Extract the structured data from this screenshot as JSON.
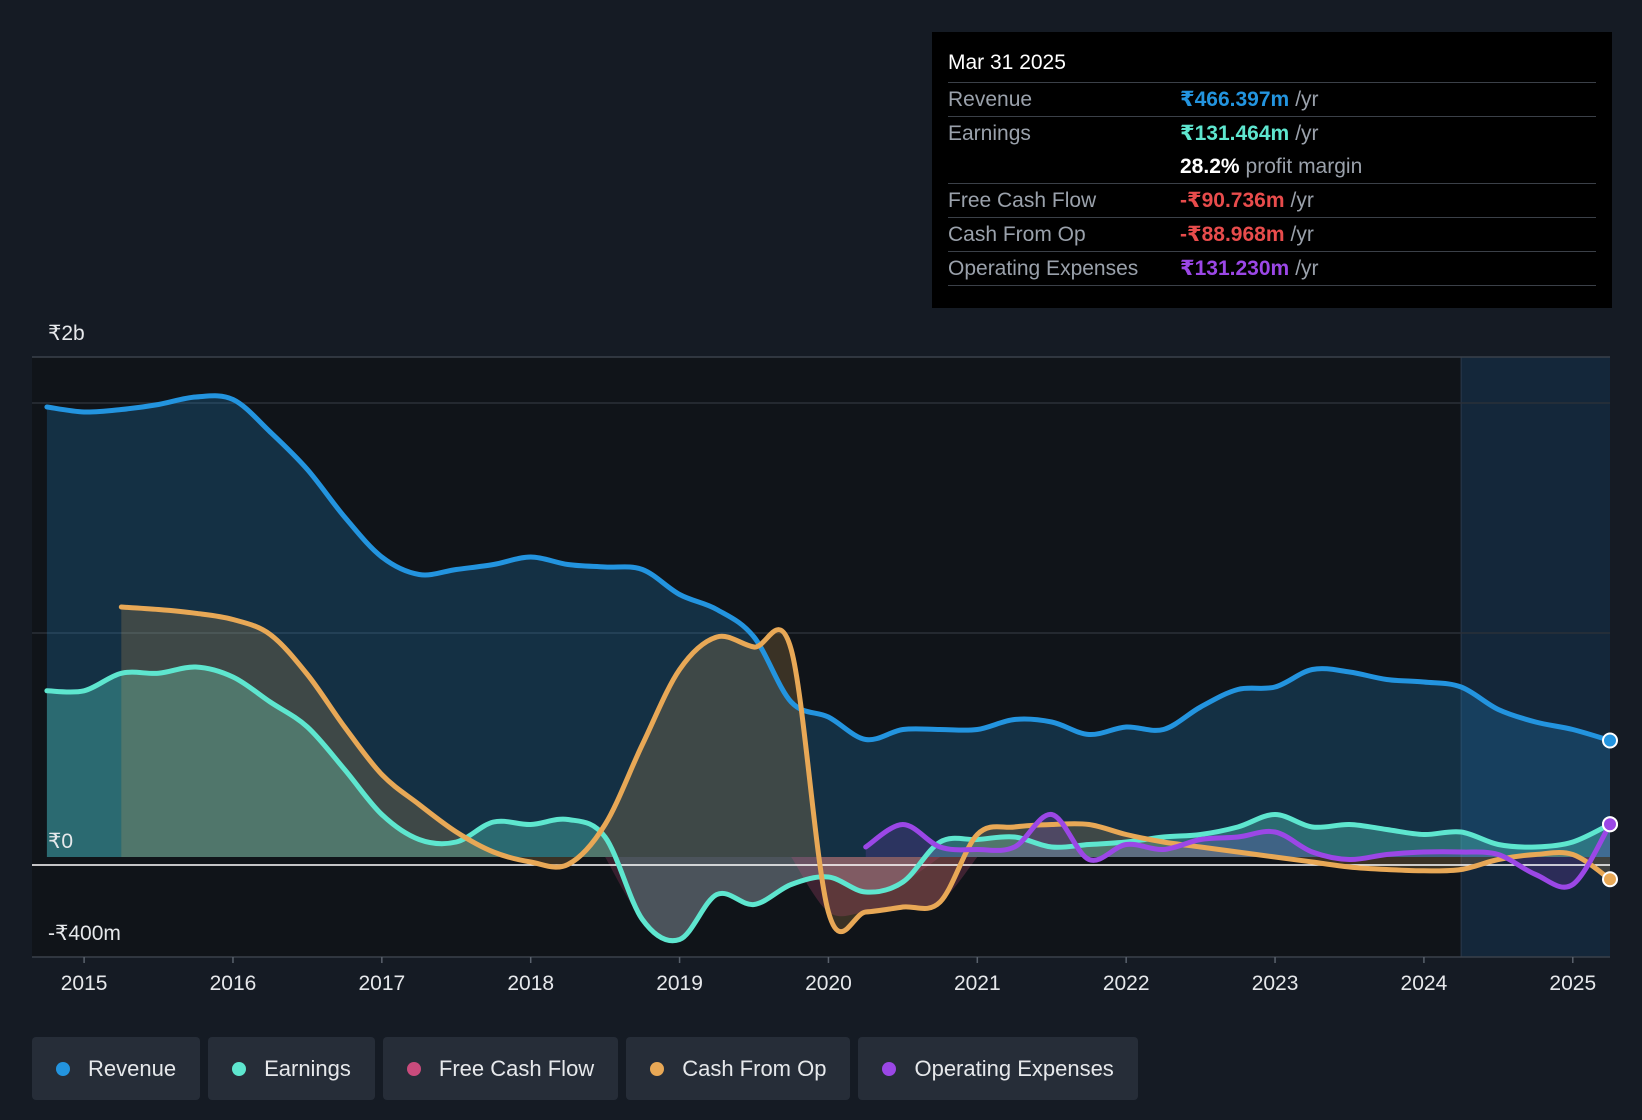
{
  "chart_data": {
    "type": "area",
    "y_axis": {
      "ylim": [
        -400,
        2000
      ],
      "unit": "₹m",
      "tick_labels": [
        {
          "value": 2000,
          "label": "₹2b"
        },
        {
          "value": 0,
          "label": "₹0"
        },
        {
          "value": -400,
          "label": "-₹400m"
        }
      ]
    },
    "x_axis": {
      "xlim": [
        2014.65,
        2025.25
      ],
      "ticks": [
        "2015",
        "2016",
        "2017",
        "2018",
        "2019",
        "2020",
        "2021",
        "2022",
        "2023",
        "2024",
        "2025"
      ]
    },
    "forecast_start": 2024.25,
    "series": [
      {
        "name": "Revenue",
        "color": "#2394df",
        "points": [
          [
            2014.75,
            1800
          ],
          [
            2015.0,
            1780
          ],
          [
            2015.25,
            1790
          ],
          [
            2015.5,
            1810
          ],
          [
            2015.75,
            1840
          ],
          [
            2016.0,
            1830
          ],
          [
            2016.25,
            1700
          ],
          [
            2016.5,
            1550
          ],
          [
            2016.75,
            1360
          ],
          [
            2017.0,
            1200
          ],
          [
            2017.25,
            1130
          ],
          [
            2017.5,
            1150
          ],
          [
            2017.75,
            1170
          ],
          [
            2018.0,
            1200
          ],
          [
            2018.25,
            1170
          ],
          [
            2018.5,
            1160
          ],
          [
            2018.75,
            1150
          ],
          [
            2019.0,
            1050
          ],
          [
            2019.25,
            990
          ],
          [
            2019.5,
            880
          ],
          [
            2019.75,
            620
          ],
          [
            2020.0,
            560
          ],
          [
            2020.25,
            470
          ],
          [
            2020.5,
            510
          ],
          [
            2020.75,
            510
          ],
          [
            2021.0,
            510
          ],
          [
            2021.25,
            550
          ],
          [
            2021.5,
            540
          ],
          [
            2021.75,
            490
          ],
          [
            2022.0,
            520
          ],
          [
            2022.25,
            510
          ],
          [
            2022.5,
            600
          ],
          [
            2022.75,
            670
          ],
          [
            2023.0,
            680
          ],
          [
            2023.25,
            750
          ],
          [
            2023.5,
            740
          ],
          [
            2023.75,
            710
          ],
          [
            2024.0,
            700
          ],
          [
            2024.25,
            680
          ],
          [
            2024.5,
            590
          ],
          [
            2024.75,
            540
          ],
          [
            2025.0,
            510
          ],
          [
            2025.25,
            466
          ]
        ]
      },
      {
        "name": "Earnings",
        "color": "#5ee6cf",
        "points": [
          [
            2014.75,
            665
          ],
          [
            2015.0,
            665
          ],
          [
            2015.25,
            735
          ],
          [
            2015.5,
            735
          ],
          [
            2015.75,
            760
          ],
          [
            2016.0,
            720
          ],
          [
            2016.25,
            620
          ],
          [
            2016.5,
            520
          ],
          [
            2016.75,
            350
          ],
          [
            2017.0,
            170
          ],
          [
            2017.25,
            70
          ],
          [
            2017.5,
            60
          ],
          [
            2017.75,
            140
          ],
          [
            2018.0,
            130
          ],
          [
            2018.25,
            150
          ],
          [
            2018.5,
            80
          ],
          [
            2018.75,
            -250
          ],
          [
            2019.0,
            -330
          ],
          [
            2019.25,
            -150
          ],
          [
            2019.5,
            -190
          ],
          [
            2019.75,
            -110
          ],
          [
            2020.0,
            -80
          ],
          [
            2020.25,
            -140
          ],
          [
            2020.5,
            -100
          ],
          [
            2020.75,
            60
          ],
          [
            2021.0,
            70
          ],
          [
            2021.25,
            80
          ],
          [
            2021.5,
            40
          ],
          [
            2021.75,
            50
          ],
          [
            2022.0,
            60
          ],
          [
            2022.25,
            80
          ],
          [
            2022.5,
            90
          ],
          [
            2022.75,
            120
          ],
          [
            2023.0,
            170
          ],
          [
            2023.25,
            120
          ],
          [
            2023.5,
            130
          ],
          [
            2023.75,
            110
          ],
          [
            2024.0,
            90
          ],
          [
            2024.25,
            100
          ],
          [
            2024.5,
            50
          ],
          [
            2024.75,
            40
          ],
          [
            2025.0,
            60
          ],
          [
            2025.25,
            131
          ]
        ]
      },
      {
        "name": "Free Cash Flow",
        "color": "#c94b7c",
        "points": []
      },
      {
        "name": "Cash From Op",
        "color": "#e8a856",
        "points": [
          [
            2015.25,
            1000
          ],
          [
            2015.5,
            990
          ],
          [
            2015.75,
            975
          ],
          [
            2016.0,
            950
          ],
          [
            2016.25,
            890
          ],
          [
            2016.5,
            730
          ],
          [
            2016.75,
            520
          ],
          [
            2017.0,
            330
          ],
          [
            2017.25,
            210
          ],
          [
            2017.5,
            100
          ],
          [
            2017.75,
            20
          ],
          [
            2018.0,
            -20
          ],
          [
            2018.25,
            -30
          ],
          [
            2018.5,
            130
          ],
          [
            2018.75,
            450
          ],
          [
            2019.0,
            750
          ],
          [
            2019.25,
            880
          ],
          [
            2019.5,
            840
          ],
          [
            2019.75,
            830
          ],
          [
            2020.0,
            -220
          ],
          [
            2020.25,
            -220
          ],
          [
            2020.5,
            -200
          ],
          [
            2020.75,
            -180
          ],
          [
            2021.0,
            90
          ],
          [
            2021.25,
            120
          ],
          [
            2021.5,
            130
          ],
          [
            2021.75,
            130
          ],
          [
            2022.0,
            90
          ],
          [
            2022.25,
            60
          ],
          [
            2022.5,
            40
          ],
          [
            2022.75,
            20
          ],
          [
            2023.0,
            0
          ],
          [
            2023.25,
            -20
          ],
          [
            2023.5,
            -40
          ],
          [
            2023.75,
            -50
          ],
          [
            2024.0,
            -55
          ],
          [
            2024.25,
            -50
          ],
          [
            2024.5,
            -10
          ],
          [
            2024.75,
            10
          ],
          [
            2025.0,
            10
          ],
          [
            2025.25,
            -89
          ]
        ]
      },
      {
        "name": "Operating Expenses",
        "color": "#9b47e6",
        "points": [
          [
            2020.25,
            40
          ],
          [
            2020.5,
            130
          ],
          [
            2020.75,
            40
          ],
          [
            2021.0,
            30
          ],
          [
            2021.25,
            40
          ],
          [
            2021.5,
            170
          ],
          [
            2021.75,
            -10
          ],
          [
            2022.0,
            50
          ],
          [
            2022.25,
            30
          ],
          [
            2022.5,
            70
          ],
          [
            2022.75,
            80
          ],
          [
            2023.0,
            100
          ],
          [
            2023.25,
            20
          ],
          [
            2023.5,
            -10
          ],
          [
            2023.75,
            10
          ],
          [
            2024.0,
            20
          ],
          [
            2024.25,
            20
          ],
          [
            2024.5,
            10
          ],
          [
            2024.75,
            -70
          ],
          [
            2025.0,
            -110
          ],
          [
            2025.25,
            131
          ]
        ]
      }
    ]
  },
  "tooltip": {
    "date": "Mar 31 2025",
    "rows": [
      {
        "label": "Revenue",
        "value": "₹466.397m",
        "unit": "/yr",
        "color": "#2394df"
      },
      {
        "label": "Earnings",
        "value": "₹131.464m",
        "unit": "/yr",
        "color": "#5ee6cf"
      },
      {
        "label": "Free Cash Flow",
        "value": "-₹90.736m",
        "unit": "/yr",
        "color": "#e84c4c"
      },
      {
        "label": "Cash From Op",
        "value": "-₹88.968m",
        "unit": "/yr",
        "color": "#e84c4c"
      },
      {
        "label": "Operating Expenses",
        "value": "₹131.230m",
        "unit": "/yr",
        "color": "#9b47e6"
      }
    ],
    "margin_value": "28.2%",
    "margin_label": "profit margin"
  },
  "legend": [
    {
      "label": "Revenue",
      "color": "#2394df"
    },
    {
      "label": "Earnings",
      "color": "#5ee6cf"
    },
    {
      "label": "Free Cash Flow",
      "color": "#c94b7c"
    },
    {
      "label": "Cash From Op",
      "color": "#e8a856"
    },
    {
      "label": "Operating Expenses",
      "color": "#9b47e6"
    }
  ]
}
